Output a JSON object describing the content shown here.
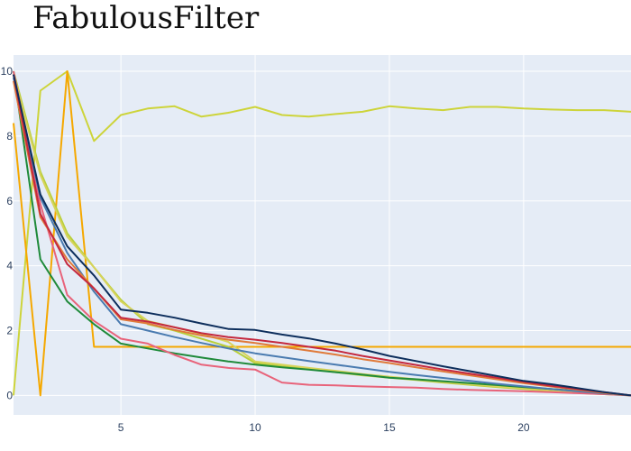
{
  "chart_data": {
    "type": "line",
    "title": "FabulousFilter",
    "xlabel": "",
    "ylabel": "",
    "xlim": [
      1,
      24
    ],
    "ylim": [
      -0.6,
      10.5
    ],
    "x_ticks": [
      5,
      10,
      15,
      20
    ],
    "y_ticks": [
      0,
      2,
      4,
      6,
      8,
      10
    ],
    "grid": true,
    "legend": "none",
    "plot_bg": "#e5ecf6",
    "series": [
      {
        "color": "#cdd43a",
        "x": [
          1,
          2,
          3,
          4,
          5,
          6,
          7,
          8,
          9,
          10,
          11,
          12,
          13,
          14,
          15,
          16,
          17,
          18,
          19,
          20,
          21,
          22,
          23,
          24
        ],
        "y": [
          0,
          9.4,
          10,
          7.85,
          8.65,
          8.85,
          8.92,
          8.6,
          8.72,
          8.9,
          8.65,
          8.6,
          8.68,
          8.75,
          8.92,
          8.85,
          8.8,
          8.9,
          8.9,
          8.85,
          8.82,
          8.8,
          8.8,
          8.75
        ]
      },
      {
        "color": "#f5a800",
        "x": [
          1,
          2,
          3,
          4,
          5,
          6,
          7,
          8,
          9,
          10,
          11,
          12,
          13,
          14,
          15,
          16,
          17,
          18,
          19,
          20,
          21,
          22,
          23,
          24
        ],
        "y": [
          8.4,
          0,
          10,
          1.5,
          1.5,
          1.5,
          1.5,
          1.5,
          1.5,
          1.5,
          1.5,
          1.5,
          1.5,
          1.5,
          1.5,
          1.5,
          1.5,
          1.5,
          1.5,
          1.5,
          1.5,
          1.5,
          1.5,
          1.5
        ]
      },
      {
        "color": "#b8cf3a",
        "x": [
          1,
          2,
          3,
          4,
          5,
          6,
          7,
          8,
          9,
          10,
          11,
          12,
          13,
          14,
          15,
          16,
          17,
          18,
          19,
          20,
          21,
          22,
          23,
          24
        ],
        "y": [
          10,
          6.9,
          5,
          3.95,
          2.95,
          2.2,
          2.0,
          1.75,
          1.5,
          1.0,
          0.9,
          0.82,
          0.72,
          0.62,
          0.55,
          0.48,
          0.4,
          0.33,
          0.26,
          0.2,
          0.14,
          0.08,
          0.04,
          0
        ]
      },
      {
        "color": "#d7d35a",
        "x": [
          1,
          2,
          3,
          4,
          5,
          6,
          7,
          8,
          9,
          10,
          11,
          12,
          13,
          14,
          15,
          16,
          17,
          18,
          19,
          20,
          21,
          22,
          23,
          24
        ],
        "y": [
          9.9,
          6.8,
          4.9,
          3.95,
          2.9,
          2.3,
          2.1,
          1.9,
          1.65,
          1.05,
          0.95,
          0.85,
          0.76,
          0.66,
          0.58,
          0.5,
          0.42,
          0.35,
          0.28,
          0.22,
          0.16,
          0.1,
          0.05,
          0
        ]
      },
      {
        "color": "#1f8a3a",
        "x": [
          1,
          2,
          3,
          4,
          5,
          6,
          7,
          8,
          9,
          10,
          11,
          12,
          13,
          14,
          15,
          16,
          17,
          18,
          19,
          20,
          21,
          22,
          23,
          24
        ],
        "y": [
          10,
          4.2,
          2.9,
          2.2,
          1.6,
          1.45,
          1.3,
          1.17,
          1.05,
          0.95,
          0.87,
          0.8,
          0.72,
          0.64,
          0.55,
          0.5,
          0.44,
          0.38,
          0.32,
          0.26,
          0.2,
          0.14,
          0.07,
          0
        ]
      },
      {
        "color": "#e8637a",
        "x": [
          1,
          2,
          3,
          4,
          5,
          6,
          7,
          8,
          9,
          10,
          11,
          12,
          13,
          14,
          15,
          16,
          17,
          18,
          19,
          20,
          21,
          22,
          23,
          24
        ],
        "y": [
          10,
          5.9,
          3.1,
          2.3,
          1.75,
          1.6,
          1.25,
          0.95,
          0.85,
          0.8,
          0.4,
          0.33,
          0.31,
          0.28,
          0.26,
          0.24,
          0.2,
          0.17,
          0.15,
          0.13,
          0.1,
          0.07,
          0.04,
          0
        ]
      },
      {
        "color": "#4a7bb0",
        "x": [
          1,
          2,
          3,
          4,
          5,
          6,
          7,
          8,
          9,
          10,
          11,
          12,
          13,
          14,
          15,
          16,
          17,
          18,
          19,
          20,
          21,
          22,
          23,
          24
        ],
        "y": [
          9.8,
          6.1,
          4.4,
          3.2,
          2.2,
          2.0,
          1.8,
          1.62,
          1.45,
          1.3,
          1.18,
          1.06,
          0.95,
          0.84,
          0.73,
          0.63,
          0.54,
          0.45,
          0.36,
          0.28,
          0.2,
          0.13,
          0.06,
          0
        ]
      },
      {
        "color": "#e07a3a",
        "x": [
          1,
          2,
          3,
          4,
          5,
          6,
          7,
          8,
          9,
          10,
          11,
          12,
          13,
          14,
          15,
          16,
          17,
          18,
          19,
          20,
          21,
          22,
          23,
          24
        ],
        "y": [
          9.7,
          5.5,
          4.2,
          3.3,
          2.35,
          2.22,
          2.02,
          1.85,
          1.72,
          1.62,
          1.5,
          1.38,
          1.26,
          1.12,
          1.0,
          0.87,
          0.74,
          0.62,
          0.5,
          0.38,
          0.28,
          0.18,
          0.08,
          0
        ]
      },
      {
        "color": "#c4283e",
        "x": [
          1,
          2,
          3,
          4,
          5,
          6,
          7,
          8,
          9,
          10,
          11,
          12,
          13,
          14,
          15,
          16,
          17,
          18,
          19,
          20,
          21,
          22,
          23,
          24
        ],
        "y": [
          9.9,
          5.6,
          4.05,
          3.3,
          2.4,
          2.28,
          2.1,
          1.92,
          1.8,
          1.72,
          1.62,
          1.5,
          1.38,
          1.22,
          1.08,
          0.94,
          0.8,
          0.67,
          0.55,
          0.42,
          0.3,
          0.2,
          0.1,
          0
        ]
      },
      {
        "color": "#0d2e5c",
        "x": [
          1,
          2,
          3,
          4,
          5,
          6,
          7,
          8,
          9,
          10,
          11,
          12,
          13,
          14,
          15,
          16,
          17,
          18,
          19,
          20,
          21,
          22,
          23,
          24
        ],
        "y": [
          9.9,
          6.2,
          4.6,
          3.7,
          2.65,
          2.55,
          2.4,
          2.22,
          2.05,
          2.02,
          1.88,
          1.76,
          1.6,
          1.42,
          1.22,
          1.06,
          0.9,
          0.75,
          0.6,
          0.45,
          0.35,
          0.23,
          0.1,
          0
        ]
      }
    ]
  }
}
